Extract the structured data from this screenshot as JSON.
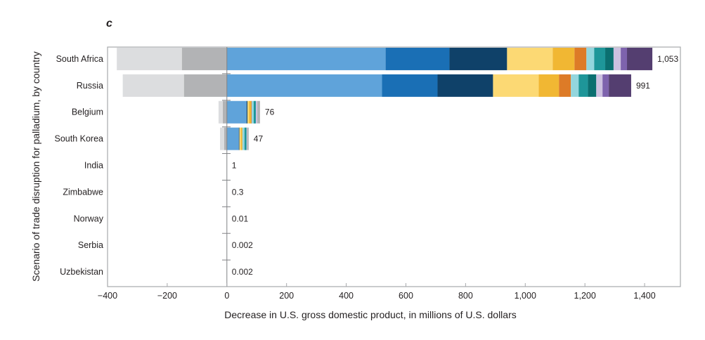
{
  "chart_data": {
    "type": "bar",
    "orientation": "horizontal",
    "stacked": true,
    "panel_label": "c",
    "title": "",
    "xlabel": "Decrease in U.S. gross domestic product, in millions of U.S. dollars",
    "ylabel": "Scenario of trade disruption for palladium, by country",
    "xlim": [
      -400,
      1520
    ],
    "xticks": [
      -400,
      -200,
      0,
      200,
      400,
      600,
      800,
      1000,
      1200,
      1400
    ],
    "xtick_labels": [
      "−400",
      "−200",
      "0",
      "200",
      "400",
      "600",
      "800",
      "1,000",
      "1,200",
      "1,400"
    ],
    "grid": false,
    "legend": "none",
    "categories": [
      "South Africa",
      "Russia",
      "Belgium",
      "South Korea",
      "India",
      "Zimbabwe",
      "Norway",
      "Serbia",
      "Uzbekistan"
    ],
    "totals_labels": [
      "1,053",
      "991",
      "76",
      "47",
      "1",
      "0.3",
      "0.01",
      "0.002",
      "0.002"
    ],
    "negative_segments": [
      {
        "color": "#dcdddf",
        "values": [
          -218,
          -205,
          -14,
          -14,
          0,
          0,
          0,
          0,
          0
        ]
      },
      {
        "color": "#b2b3b5",
        "values": [
          -151,
          -144,
          -14,
          -9,
          0,
          0,
          0,
          0,
          0
        ]
      }
    ],
    "positive_segments": [
      {
        "color": "#5fa3da",
        "values": [
          532,
          520,
          66,
          40,
          0,
          0,
          0,
          0,
          0
        ]
      },
      {
        "color": "#1a6fb5",
        "values": [
          214,
          186,
          0,
          0,
          0,
          0,
          0,
          0,
          0
        ]
      },
      {
        "color": "#0f4169",
        "values": [
          193,
          186,
          3,
          2,
          0,
          0,
          0,
          0,
          0
        ]
      },
      {
        "color": "#fcd974",
        "values": [
          153,
          153,
          5,
          5,
          0,
          0,
          0,
          0,
          0
        ]
      },
      {
        "color": "#f1b733",
        "values": [
          73,
          68,
          7,
          5,
          0,
          0,
          0,
          0,
          0
        ]
      },
      {
        "color": "#dd7b27",
        "values": [
          40,
          40,
          2,
          0,
          0,
          0,
          0,
          0,
          0
        ]
      },
      {
        "color": "#93d6dd",
        "values": [
          26,
          26,
          7,
          7,
          0,
          0,
          0,
          0,
          0
        ]
      },
      {
        "color": "#1e9699",
        "values": [
          37,
          31,
          7,
          7,
          0,
          0,
          0,
          0,
          0
        ]
      },
      {
        "color": "#0b6f70",
        "values": [
          28,
          28,
          0,
          0,
          0,
          0,
          0,
          0,
          0
        ]
      },
      {
        "color": "#cdc1e0",
        "values": [
          24,
          21,
          5,
          2,
          0,
          0,
          0,
          0,
          0
        ]
      },
      {
        "color": "#7e63ad",
        "values": [
          21,
          21,
          0,
          0,
          0,
          0,
          0,
          0,
          0
        ]
      },
      {
        "color": "#543e70",
        "values": [
          85,
          75,
          0,
          0,
          0,
          0,
          0,
          0,
          0
        ]
      },
      {
        "color": "#b2b3b5",
        "values": [
          0,
          0,
          9,
          5,
          0,
          0,
          0,
          0,
          0
        ]
      }
    ]
  }
}
